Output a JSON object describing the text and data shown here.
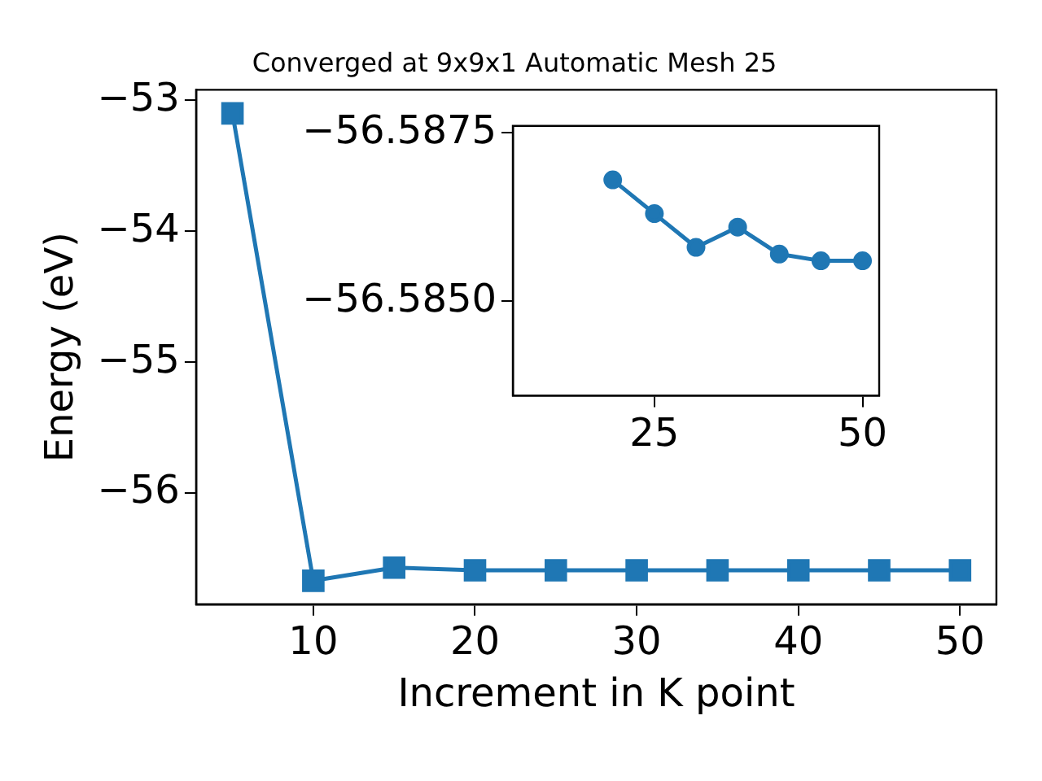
{
  "chart_data": [
    {
      "type": "line",
      "title": "Converged at 9x9x1 Automatic Mesh 25",
      "xlabel": "Increment in K point",
      "ylabel": "Energy (eV)",
      "x": [
        5,
        10,
        15,
        20,
        25,
        30,
        35,
        40,
        45,
        50
      ],
      "series": [
        {
          "color": "#1f77b4",
          "values": [
            -53.1,
            -56.67,
            -56.57,
            -56.59,
            -56.59,
            -56.59,
            -56.59,
            -56.59,
            -56.59,
            -56.59
          ]
        }
      ],
      "xlim": [
        2.75,
        52.25
      ],
      "ylim": [
        -56.85,
        -52.92
      ],
      "xticks": [
        10,
        20,
        30,
        40,
        50
      ],
      "yticks": [
        -56,
        -55,
        -54,
        -53
      ],
      "marker": "square",
      "grid": false,
      "legend": false
    },
    {
      "type": "line",
      "x": [
        20,
        25,
        30,
        35,
        40,
        45,
        50
      ],
      "series": [
        {
          "color": "#1f77b4",
          "values": [
            -56.5868,
            -56.5863,
            -56.5858,
            -56.5861,
            -56.5857,
            -56.5856,
            -56.5856
          ]
        }
      ],
      "xlim": [
        8,
        52
      ],
      "ylim": [
        -56.5836,
        -56.5876
      ],
      "xticks": [
        25,
        50
      ],
      "yticks": [
        -56.5875,
        {
          "value": -56.585,
          "label": "−56.5850"
        }
      ],
      "marker": "circle",
      "grid": false,
      "legend": false
    }
  ]
}
